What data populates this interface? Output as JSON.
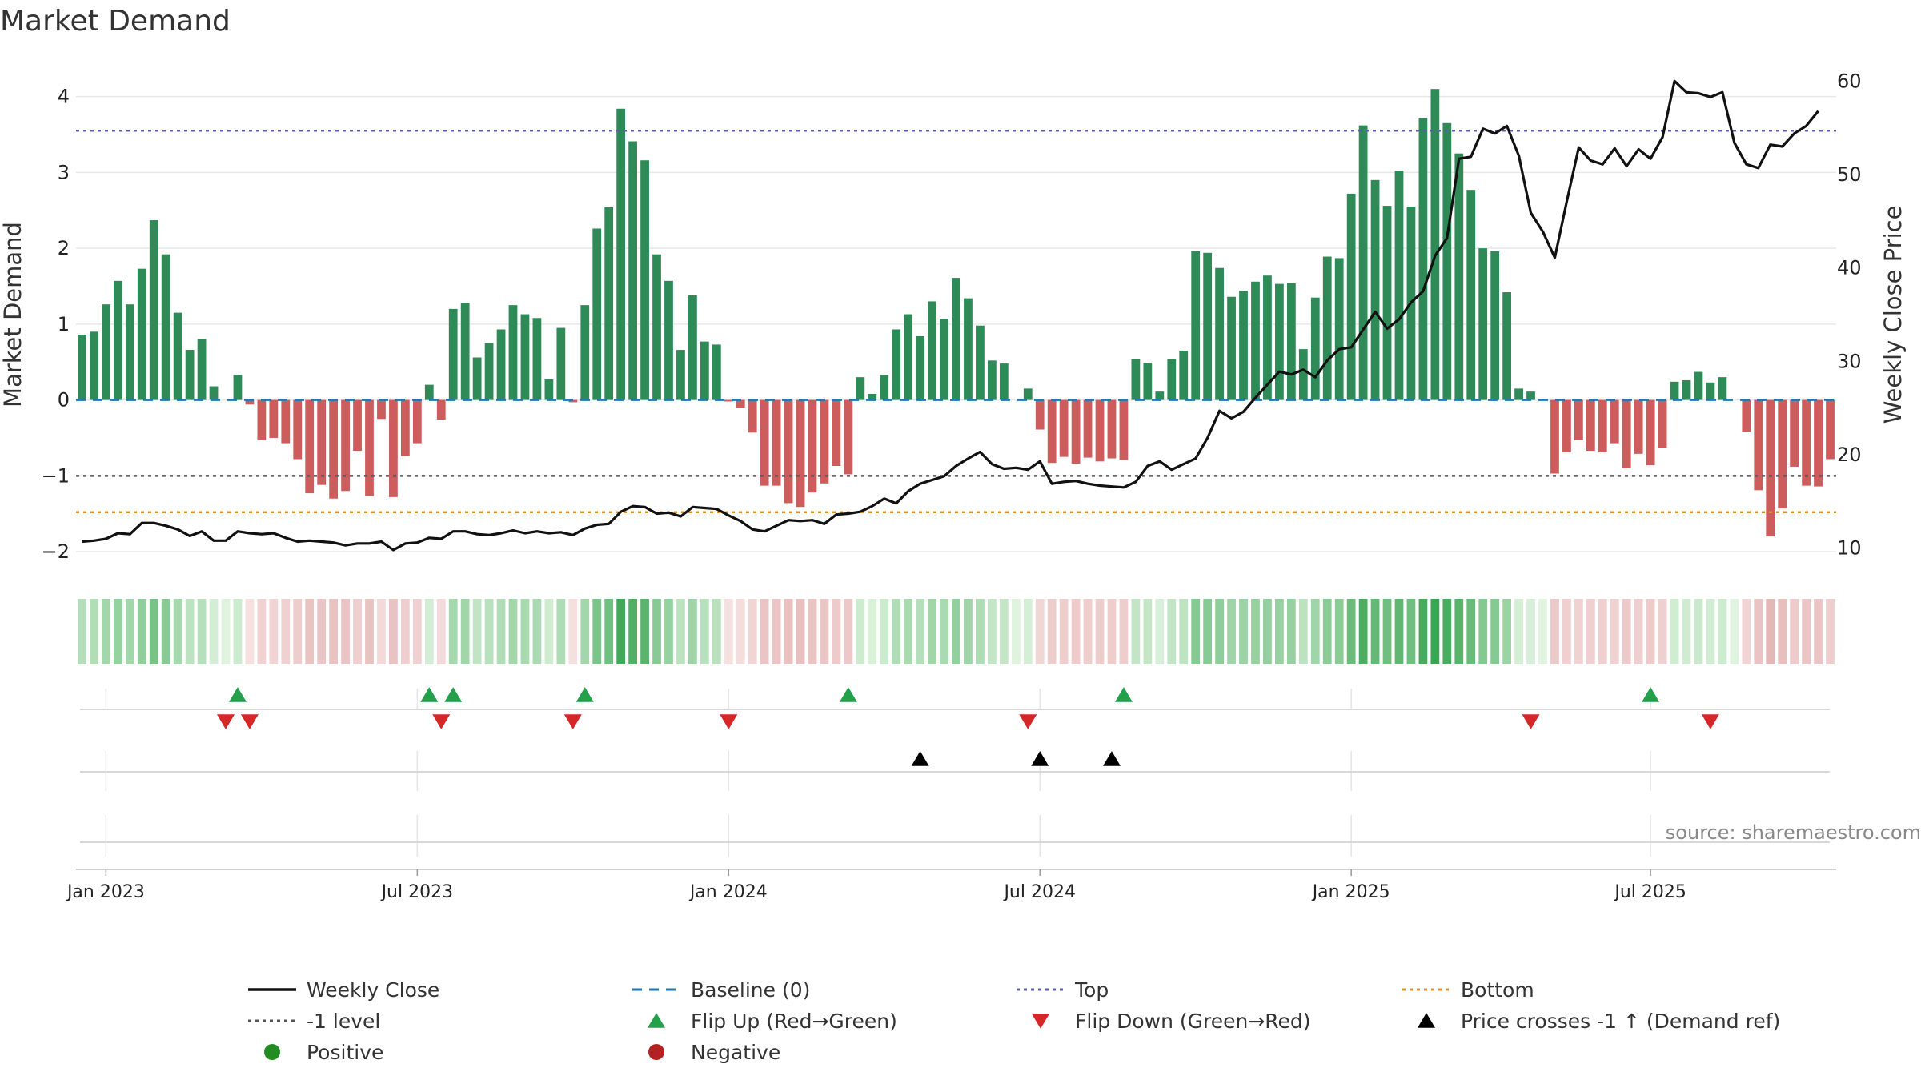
{
  "title": "Market Demand",
  "source": "source: sharemaestro.com",
  "colors": {
    "positive_bar": "#2e8b57",
    "negative_bar": "#cd5c5c",
    "price_line": "#111111",
    "baseline": "#1f77b4",
    "top": "#5b5ea6",
    "minus1": "#555555",
    "bottom": "#e0902a",
    "flip_up": "#22a14a",
    "flip_down": "#d62728",
    "cross": "#000000",
    "positive_dot": "#228b22",
    "negative_dot": "#b22222"
  },
  "chart_data": {
    "type": "bar",
    "title": "Market Demand",
    "ylabel": "Market Demand",
    "y2label": "Weekly Close Price",
    "ylim": [
      -2.2,
      4.45
    ],
    "y2lim": [
      8,
      62
    ],
    "yticks": [
      -2,
      -1,
      0,
      1,
      2,
      3,
      4
    ],
    "y2ticks": [
      10,
      20,
      30,
      40,
      50,
      60
    ],
    "xticks": [
      "Jan 2023",
      "Jul 2023",
      "Jan 2024",
      "Jul 2024",
      "Jan 2025",
      "Jul 2025"
    ],
    "xtick_weeks": [
      2,
      28,
      54,
      80,
      106,
      131
    ],
    "reference_lines": {
      "top": 3.55,
      "minus1": -1.0,
      "bottom": -1.48,
      "baseline": 0
    },
    "demand": [
      0.86,
      0.9,
      1.26,
      1.57,
      1.26,
      1.73,
      2.37,
      1.92,
      1.15,
      0.66,
      0.8,
      0.18,
      0.0,
      0.33,
      -0.06,
      -0.53,
      -0.5,
      -0.57,
      -0.78,
      -1.23,
      -1.12,
      -1.3,
      -1.2,
      -0.67,
      -1.27,
      -0.25,
      -1.28,
      -0.74,
      -0.57,
      0.2,
      -0.26,
      1.2,
      1.28,
      0.56,
      0.75,
      0.93,
      1.25,
      1.13,
      1.08,
      0.27,
      0.95,
      -0.03,
      1.25,
      2.26,
      2.54,
      3.84,
      3.41,
      3.16,
      1.92,
      1.57,
      0.66,
      1.38,
      0.77,
      0.73,
      -0.02,
      -0.1,
      -0.43,
      -1.13,
      -1.13,
      -1.36,
      -1.41,
      -1.22,
      -1.1,
      -0.87,
      -0.98,
      0.3,
      0.08,
      0.33,
      0.93,
      1.13,
      0.84,
      1.3,
      1.07,
      1.61,
      1.34,
      0.98,
      0.52,
      0.48,
      0.0,
      0.15,
      -0.39,
      -0.83,
      -0.75,
      -0.84,
      -0.76,
      -0.81,
      -0.77,
      -0.79,
      0.54,
      0.49,
      0.11,
      0.54,
      0.65,
      1.96,
      1.94,
      1.74,
      1.36,
      1.44,
      1.56,
      1.64,
      1.53,
      1.54,
      0.67,
      1.35,
      1.89,
      1.87,
      2.72,
      3.62,
      2.9,
      2.56,
      3.02,
      2.55,
      3.72,
      4.1,
      3.65,
      3.25,
      2.77,
      2.0,
      1.96,
      1.42,
      0.15,
      0.11,
      0.0,
      -0.97,
      -0.69,
      -0.53,
      -0.67,
      -0.69,
      -0.57,
      -0.9,
      -0.71,
      -0.86,
      -0.63,
      0.24,
      0.26,
      0.37,
      0.23,
      0.3,
      0.0,
      -0.42,
      -1.19,
      -1.8,
      -1.43,
      -0.88,
      -1.13,
      -1.14,
      -0.78
    ],
    "price": [
      10.7,
      10.8,
      11.0,
      11.6,
      11.5,
      12.7,
      12.7,
      12.4,
      12.0,
      11.3,
      11.8,
      10.8,
      10.8,
      11.8,
      11.6,
      11.5,
      11.6,
      11.1,
      10.7,
      10.8,
      10.7,
      10.6,
      10.3,
      10.5,
      10.5,
      10.7,
      9.8,
      10.5,
      10.6,
      11.1,
      11.0,
      11.8,
      11.8,
      11.5,
      11.4,
      11.6,
      11.9,
      11.6,
      11.8,
      11.6,
      11.7,
      11.4,
      12.1,
      12.5,
      12.6,
      13.9,
      14.5,
      14.4,
      13.7,
      13.8,
      13.4,
      14.4,
      14.3,
      14.2,
      13.5,
      12.9,
      12.0,
      11.8,
      12.4,
      13.0,
      12.9,
      13.0,
      12.6,
      13.6,
      13.7,
      13.9,
      14.5,
      15.3,
      14.8,
      16.1,
      16.9,
      17.3,
      17.7,
      18.8,
      19.6,
      20.3,
      19.0,
      18.5,
      18.6,
      18.4,
      19.3,
      16.9,
      17.1,
      17.2,
      16.9,
      16.7,
      16.6,
      16.5,
      17.1,
      18.8,
      19.3,
      18.4,
      19.0,
      19.6,
      21.8,
      24.7,
      23.9,
      24.6,
      26.1,
      27.5,
      28.9,
      28.6,
      29.1,
      28.3,
      30.1,
      31.3,
      31.5,
      33.4,
      35.3,
      33.5,
      34.5,
      36.3,
      37.5,
      41.3,
      43.2,
      51.7,
      51.9,
      54.9,
      54.4,
      55.2,
      52.0,
      45.9,
      43.9,
      41.1,
      47.1,
      52.9,
      51.5,
      51.1,
      52.8,
      50.9,
      52.7,
      51.7,
      54.0,
      60.0,
      58.8,
      58.7,
      58.3,
      58.8,
      53.4,
      51.1,
      50.7,
      53.2,
      53.0,
      54.4,
      55.2,
      56.8
    ],
    "flip_up_weeks": [
      13,
      29,
      31,
      42,
      64,
      87,
      131
    ],
    "flip_down_weeks": [
      12,
      14,
      30,
      41,
      54,
      79,
      121,
      136
    ],
    "price_cross_weeks": [
      70,
      80,
      86
    ],
    "legend": {
      "weekly_close": "Weekly Close",
      "baseline": "Baseline (0)",
      "top": "Top",
      "bottom": "Bottom",
      "minus1": "-1 level",
      "flip_up": "Flip Up (Red→Green)",
      "flip_down": "Flip Down (Green→Red)",
      "price_cross": "Price crosses -1 ↑ (Demand ref)",
      "positive": "Positive",
      "negative": "Negative"
    }
  }
}
